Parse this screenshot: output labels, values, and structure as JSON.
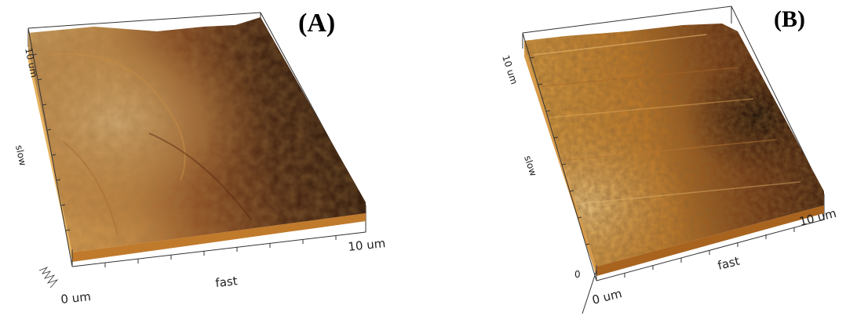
{
  "panels": [
    {
      "letter": "(A)",
      "axis_fast": "fast",
      "axis_slow": "slow",
      "fast_start": "0 um",
      "fast_end": "10 um",
      "slow_end": "10 um"
    },
    {
      "letter": "(B)",
      "axis_fast": "fast",
      "axis_slow": "slow",
      "fast_start": "0 um",
      "fast_end": "10 um",
      "slow_end": "10 um",
      "z_origin": "0"
    }
  ],
  "colors": {
    "dark": "#1c0f08",
    "mid": "#7a3a17",
    "light": "#e9c06e",
    "highlight": "#f7dea0"
  }
}
